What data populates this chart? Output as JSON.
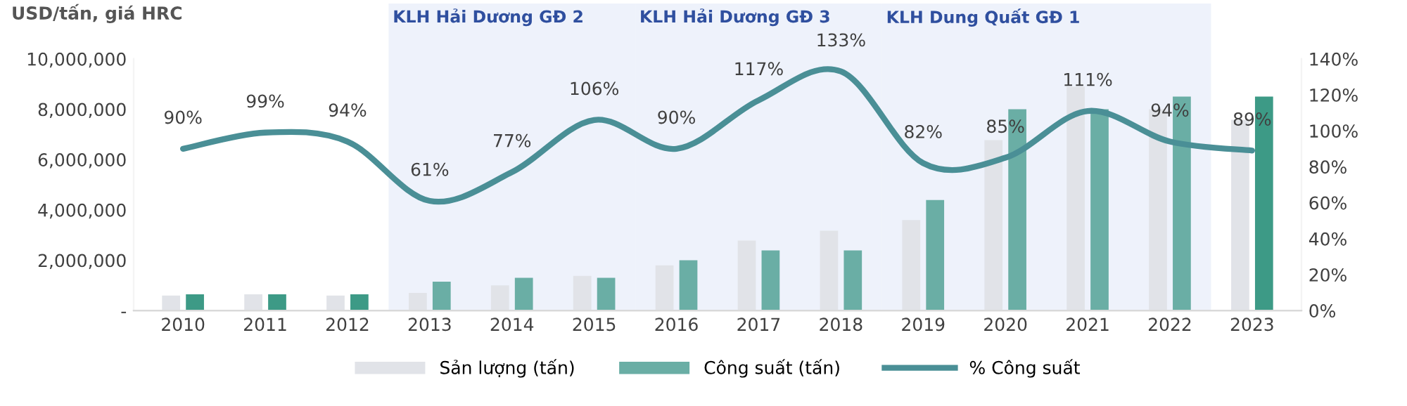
{
  "chart_data": {
    "type": "bar",
    "ylabel": "USD/tấn, giá HRC",
    "categories": [
      "2010",
      "2011",
      "2012",
      "2013",
      "2014",
      "2015",
      "2016",
      "2017",
      "2018",
      "2019",
      "2020",
      "2021",
      "2022",
      "2023"
    ],
    "series": [
      {
        "name": "Sản lượng (tấn)",
        "color": "#e1e3e8",
        "values": [
          600000,
          650000,
          600000,
          700000,
          1000000,
          1380000,
          1800000,
          2780000,
          3170000,
          3600000,
          6770000,
          8890000,
          8000000,
          7580000
        ]
      },
      {
        "name": "Công suất (tấn)",
        "color": "#6aaea5",
        "colors": [
          "#3d9a86",
          "#3d9a86",
          "#3d9a86",
          "#6aaea5",
          "#6aaea5",
          "#6aaea5",
          "#6aaea5",
          "#6aaea5",
          "#6aaea5",
          "#6aaea5",
          "#6aaea5",
          "#6aaea5",
          "#6aaea5",
          "#3d9a86"
        ],
        "values": [
          650000,
          650000,
          650000,
          1150000,
          1300000,
          1300000,
          2000000,
          2390000,
          2390000,
          4390000,
          8000000,
          8000000,
          8500000,
          8500000
        ]
      },
      {
        "name": "% Công suất",
        "type": "line",
        "axis": "y2",
        "color": "#4a8f96",
        "values": [
          90,
          99,
          94,
          61,
          77,
          106,
          90,
          117,
          133,
          82,
          85,
          111,
          94,
          89
        ],
        "value_labels": [
          "90%",
          "99%",
          "94%",
          "61%",
          "77%",
          "106%",
          "90%",
          "117%",
          "133%",
          "82%",
          "85%",
          "111%",
          "94%",
          "89%"
        ]
      }
    ],
    "ylim": [
      0,
      10000000
    ],
    "yticks": [
      {
        "value": 0,
        "label": "-"
      },
      {
        "value": 2000000,
        "label": "2,000,000"
      },
      {
        "value": 4000000,
        "label": "4,000,000"
      },
      {
        "value": 6000000,
        "label": "6,000,000"
      },
      {
        "value": 8000000,
        "label": "8,000,000"
      },
      {
        "value": 10000000,
        "label": "10,000,000"
      }
    ],
    "y2lim": [
      0,
      140
    ],
    "y2ticks": [
      {
        "value": 0,
        "label": "0%"
      },
      {
        "value": 20,
        "label": "20%"
      },
      {
        "value": 40,
        "label": "40%"
      },
      {
        "value": 60,
        "label": "60%"
      },
      {
        "value": 80,
        "label": "80%"
      },
      {
        "value": 100,
        "label": "100%"
      },
      {
        "value": 120,
        "label": "120%"
      },
      {
        "value": 140,
        "label": "140%"
      }
    ],
    "bands": [
      {
        "axis": "x",
        "from": "2013",
        "to": "2015",
        "label": "KLH Hải Dương GĐ 2",
        "color": "#eef2fb"
      },
      {
        "axis": "x",
        "from": "2016",
        "to": "2018",
        "label": "KLH Hải Dương GĐ 3",
        "color": "#eef2fb"
      },
      {
        "axis": "x",
        "from": "2019",
        "to": "2022",
        "label": "KLH Dung Quất GĐ 1",
        "color": "#eef2fb"
      }
    ],
    "grid": false,
    "legend": "bottom"
  }
}
